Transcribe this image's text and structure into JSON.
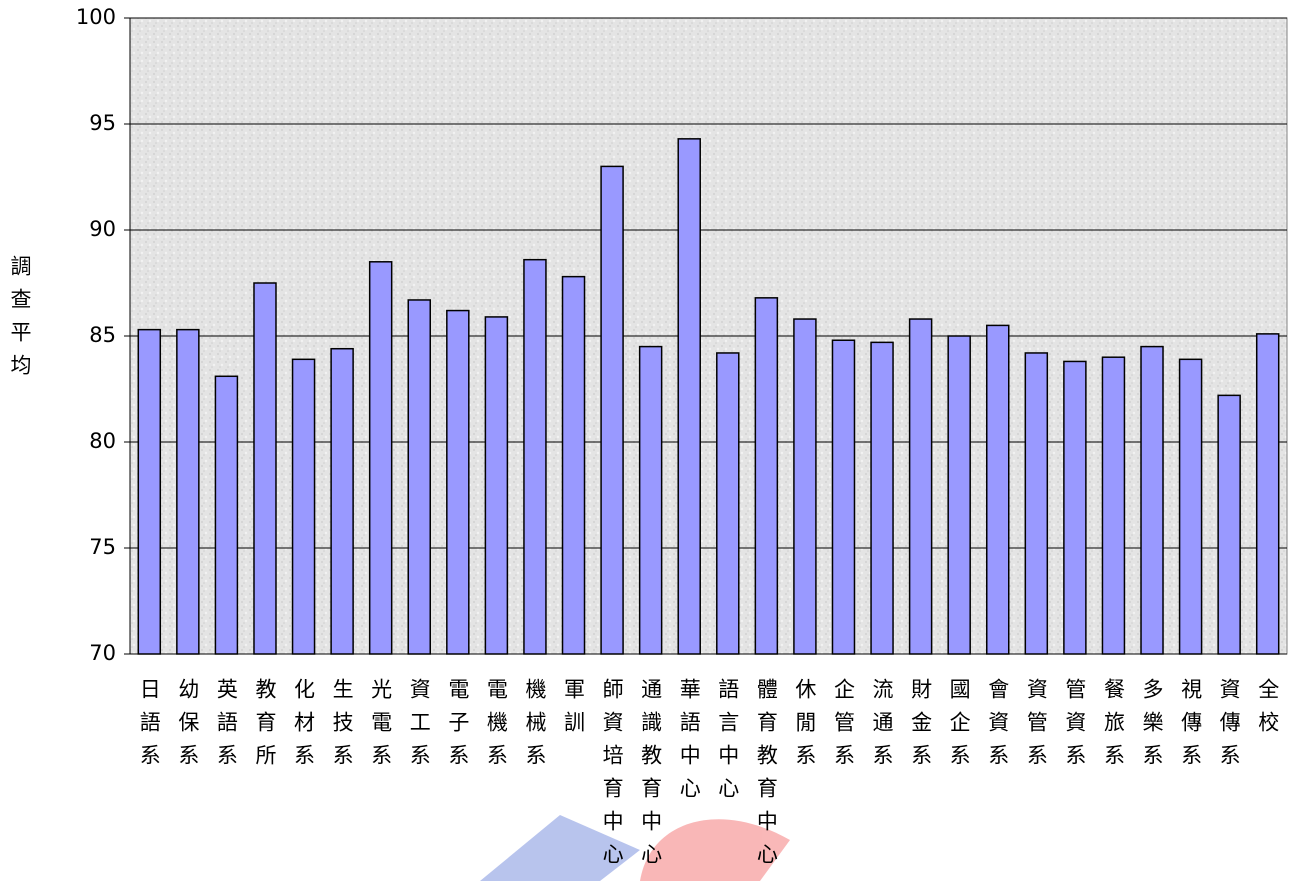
{
  "chart_data": {
    "type": "bar",
    "y_label": "調查平均",
    "categories": [
      "日語系",
      "幼保系",
      "英語系",
      "教育所",
      "化材系",
      "生技系",
      "光電系",
      "資工系",
      "電子系",
      "電機系",
      "機械系",
      "軍訓",
      "師資培育中心",
      "通識教育中心",
      "華語中心",
      "語言中心",
      "體育教育中心",
      "休閒系",
      "企管系",
      "流通系",
      "財金系",
      "國企系",
      "會資系",
      "資管系",
      "管資系",
      "餐旅系",
      "多樂系",
      "視傳系",
      "資傳系",
      "全校"
    ],
    "values": [
      85.3,
      85.3,
      83.1,
      87.5,
      83.9,
      84.4,
      88.5,
      86.7,
      86.2,
      85.9,
      88.6,
      87.8,
      93.0,
      84.5,
      94.3,
      84.2,
      86.8,
      85.8,
      84.8,
      84.7,
      85.8,
      85.0,
      85.5,
      84.2,
      83.8,
      84.0,
      84.5,
      83.9,
      82.2,
      85.1
    ],
    "color": "#9999ff",
    "ylim": [
      70,
      100
    ],
    "yticks": [
      70,
      75,
      80,
      85,
      90,
      95,
      100
    ],
    "grid": true
  }
}
